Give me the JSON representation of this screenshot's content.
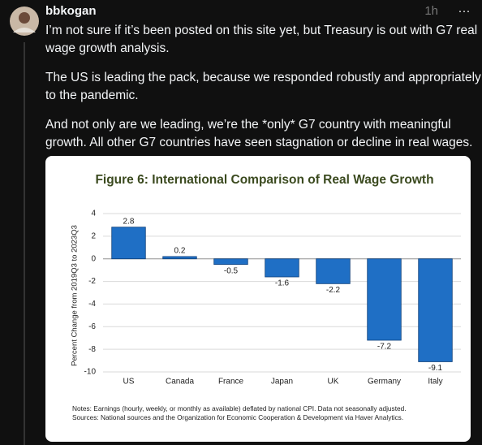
{
  "post": {
    "username": "bbkogan",
    "time": "1h",
    "menu": "···",
    "body": [
      [
        "I’m not sure if it’s been posted on this site yet, but Treasury is out with G7 real",
        "wage growth analysis."
      ],
      [
        "The US is leading the pack, because we responded robustly and appropriately",
        "to the pandemic."
      ],
      [
        "And not only are we leading, we’re the *only* G7 country with meaningful",
        "growth. All other G7 countries have seen stagnation or decline in real wages."
      ]
    ]
  },
  "chart_data": {
    "type": "bar",
    "title": "Figure 6: International Comparison of Real Wage Growth",
    "y_label": "Percent Change from 2019Q3 to 2023Q3",
    "categories": [
      "US",
      "Canada",
      "France",
      "Japan",
      "UK",
      "Germany",
      "Italy"
    ],
    "values": [
      2.8,
      0.2,
      -0.5,
      -1.6,
      -2.2,
      -7.2,
      -9.1
    ],
    "color": "#1f6fc5",
    "ylim": [
      -10,
      4
    ],
    "yticks": [
      4,
      2,
      0,
      -2,
      -4,
      -6,
      -8,
      -10
    ],
    "grid": true,
    "notes": [
      "Notes: Earnings (hourly, weekly, or monthly  as available) deflated by national CPI. Data not seasonally adjusted.",
      "Sources: National sources and the Organization for Economic Cooperation & Development via Haver Analytics."
    ]
  }
}
